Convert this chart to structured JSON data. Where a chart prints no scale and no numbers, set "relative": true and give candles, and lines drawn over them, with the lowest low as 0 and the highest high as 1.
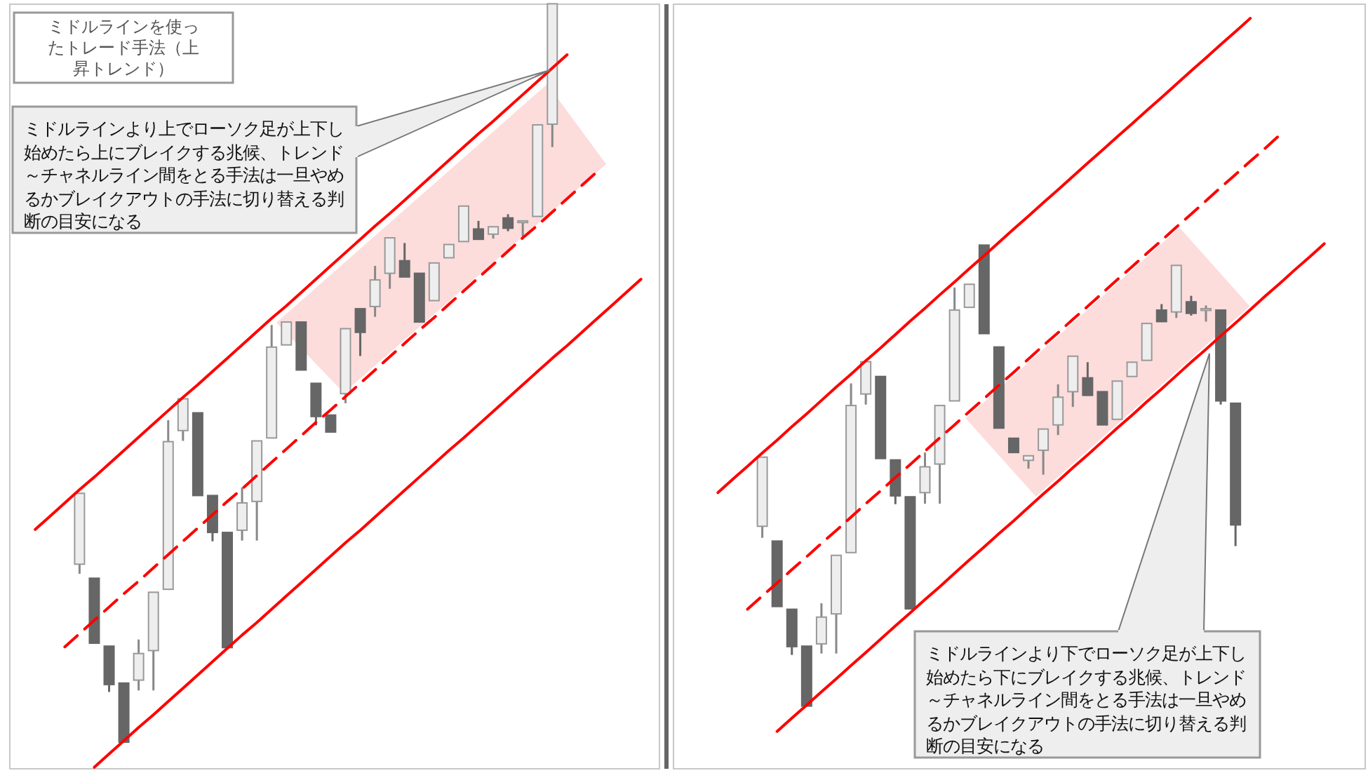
{
  "chart_data": [
    {
      "type": "candlestick",
      "title": "ミドルラインを使ったトレード手法（上昇トレンド）",
      "relative": true,
      "categories": [
        null,
        null,
        null,
        null,
        null,
        null,
        null,
        null,
        null,
        null,
        null,
        null,
        null,
        null,
        null,
        null,
        null,
        null,
        null,
        null,
        null,
        null,
        null,
        null,
        null,
        null,
        null,
        null,
        null,
        null,
        null,
        null,
        null,
        null,
        null,
        null,
        null,
        null,
        null,
        null,
        null,
        null,
        null
      ],
      "ohlc": [
        null,
        null,
        null,
        null,
        [
          0.241,
          0.337,
          0.228,
          0.337
        ],
        [
          0.222,
          0.222,
          0.134,
          0.134
        ],
        [
          0.13,
          0.13,
          0.068,
          0.078
        ],
        [
          0.08,
          0.08,
          0,
          0
        ],
        [
          0.084,
          0.139,
          0.07,
          0.12
        ],
        [
          0.124,
          0.203,
          0.07,
          0.203
        ],
        [
          0.207,
          0.436,
          0.207,
          0.407
        ],
        [
          0.422,
          0.465,
          0.408,
          0.465
        ],
        [
          0.446,
          0.446,
          0.334,
          0.334
        ],
        [
          0.334,
          0.334,
          0.272,
          0.284
        ],
        [
          0.284,
          0.284,
          0.128,
          0.128
        ],
        [
          0.287,
          0.345,
          0.273,
          0.324
        ],
        [
          0.326,
          0.408,
          0.273,
          0.408
        ],
        [
          0.412,
          0.565,
          0.412,
          0.535
        ],
        [
          0.538,
          0.569,
          0.538,
          0.569
        ],
        [
          0.569,
          0.569,
          0.504,
          0.504
        ],
        [
          0.486,
          0.486,
          0.429,
          0.441
        ],
        [
          0.443,
          0.443,
          0.42,
          0.42
        ],
        [
          0.472,
          0.56,
          0.459,
          0.56
        ],
        [
          0.587,
          0.587,
          0.523,
          0.555
        ],
        [
          0.59,
          0.645,
          0.576,
          0.626
        ],
        [
          0.635,
          0.683,
          0.614,
          0.683
        ],
        [
          0.652,
          0.676,
          0.63,
          0.63
        ],
        [
          0.635,
          0.635,
          0.569,
          0.569
        ],
        [
          0.598,
          0.649,
          0.598,
          0.649
        ],
        [
          0.656,
          0.674,
          0.656,
          0.674
        ],
        [
          0.678,
          0.726,
          0.678,
          0.726
        ],
        [
          0.695,
          0.706,
          0.681,
          0.681
        ],
        [
          0.688,
          0.698,
          0.682,
          0.698
        ],
        [
          0.71,
          0.715,
          0.692,
          0.696
        ],
        [
          0.706,
          0.706,
          0.685,
          0.706
        ],
        [
          0.712,
          0.836,
          0.712,
          0.836
        ],
        [
          0.837,
          1,
          0.806,
          1
        ],
        null,
        null,
        null,
        null,
        null,
        null
      ],
      "series": [
        {
          "type": "line",
          "color": "#ff0000",
          "line_style": "solid",
          "values": [
            null,
            0.288,
            0.306,
            0.324,
            0.342,
            0.359,
            0.377,
            0.395,
            0.413,
            0.431,
            0.449,
            0.467,
            0.484,
            0.502,
            0.52,
            0.538,
            0.556,
            0.574,
            0.591,
            0.609,
            0.627,
            0.645,
            0.663,
            0.681,
            0.699,
            0.716,
            0.734,
            0.752,
            0.77,
            0.788,
            0.806,
            0.824,
            0.841,
            0.859,
            0.877,
            0.895,
            0.913,
            0.931,
            null,
            null,
            null,
            null,
            null
          ]
        },
        {
          "type": "line",
          "color": "#ff0000",
          "line_style": "dashed",
          "values": [
            null,
            null,
            null,
            0.129,
            0.147,
            0.165,
            0.183,
            0.201,
            0.218,
            0.236,
            0.254,
            0.272,
            0.29,
            0.308,
            0.326,
            0.343,
            0.361,
            0.379,
            0.397,
            0.415,
            0.433,
            0.45,
            0.468,
            0.486,
            0.504,
            0.522,
            0.54,
            0.558,
            0.575,
            0.593,
            0.611,
            0.629,
            0.647,
            0.665,
            0.683,
            0.7,
            0.718,
            0.736,
            0.754,
            0.772,
            null,
            null,
            null
          ]
        },
        {
          "type": "line",
          "color": "#ff0000",
          "line_style": "solid",
          "values": [
            null,
            null,
            null,
            null,
            null,
            -0.034,
            -0.016,
            0.002,
            0.02,
            0.037,
            0.055,
            0.073,
            0.091,
            0.109,
            0.127,
            0.145,
            0.162,
            0.18,
            0.198,
            0.216,
            0.234,
            0.252,
            0.27,
            0.287,
            0.305,
            0.323,
            0.341,
            0.359,
            0.377,
            0.395,
            0.412,
            0.43,
            0.448,
            0.466,
            0.484,
            0.502,
            0.52,
            0.537,
            0.555,
            0.573,
            0.591,
            0.609,
            0.627
          ]
        }
      ],
      "annotations": [
        "ミドルラインより上でローソク足が上下し始めたら上にブレイクする兆候、トレンド～チャネルライン間をとる手法は一旦やめるかブレイクアウトの手法に切り替える判断の目安になる"
      ]
    },
    {
      "type": "candlestick",
      "relative": true,
      "categories": [
        null,
        null,
        null,
        null,
        null,
        null,
        null,
        null,
        null,
        null,
        null,
        null,
        null,
        null,
        null,
        null,
        null,
        null,
        null,
        null,
        null,
        null,
        null,
        null,
        null,
        null,
        null,
        null,
        null,
        null,
        null,
        null,
        null,
        null,
        null,
        null,
        null,
        null,
        null,
        null,
        null,
        null,
        null
      ],
      "ohlc": [
        null,
        null,
        null,
        null,
        [
          0.39,
          0.54,
          0.365,
          0.54
        ],
        [
          0.358,
          0.358,
          0.216,
          0.216
        ],
        [
          0.21,
          0.21,
          0.111,
          0.129
        ],
        [
          0.13,
          0.13,
          0,
          0
        ],
        [
          0.135,
          0.223,
          0.114,
          0.193
        ],
        [
          0.2,
          0.327,
          0.114,
          0.327
        ],
        [
          0.333,
          0.7,
          0.333,
          0.652
        ],
        [
          0.677,
          0.747,
          0.654,
          0.747
        ],
        [
          0.715,
          0.715,
          0.537,
          0.537
        ],
        [
          0.534,
          0.534,
          0.438,
          0.456
        ],
        [
          0.454,
          0.454,
          0.211,
          0.211
        ],
        [
          0.463,
          0.55,
          0.439,
          0.519
        ],
        [
          0.525,
          0.652,
          0.439,
          0.652
        ],
        [
          0.662,
          0.908,
          0.662,
          0.859
        ],
        [
          0.865,
          0.915,
          0.865,
          0.915
        ],
        [
          1,
          1,
          0.808,
          0.808
        ],
        [
          0.779,
          0.779,
          0.603,
          0.603
        ],
        [
          0.581,
          0.581,
          0.55,
          0.55
        ],
        [
          0.533,
          0.543,
          0.515,
          0.543
        ],
        [
          0.555,
          0.601,
          0.502,
          0.601
        ],
        [
          0.61,
          0.698,
          0.588,
          0.67
        ],
        [
          0.682,
          0.759,
          0.649,
          0.759
        ],
        [
          0.712,
          0.746,
          0.674,
          0.674
        ],
        [
          0.682,
          0.682,
          0.61,
          0.61
        ],
        [
          0.622,
          0.705,
          0.622,
          0.705
        ],
        [
          0.715,
          0.746,
          0.715,
          0.746
        ],
        [
          0.75,
          0.83,
          0.75,
          0.83
        ],
        [
          0.859,
          0.872,
          0.834,
          0.834
        ],
        [
          0.855,
          0.956,
          0.842,
          0.956
        ],
        [
          0.877,
          0.89,
          0.847,
          0.852
        ],
        [
          0.862,
          0.869,
          0.834,
          0.862
        ],
        [
          0.859,
          0.859,
          0.654,
          0.662
        ],
        [
          0.657,
          0.657,
          0.347,
          0.393
        ],
        null,
        null,
        null,
        null,
        null,
        null
      ],
      "series": [
        {
          "type": "line",
          "color": "#ff0000",
          "line_style": "solid",
          "values": [
            null,
            0.463,
            0.492,
            0.52,
            0.549,
            0.577,
            0.606,
            0.634,
            0.663,
            0.692,
            0.72,
            0.749,
            0.777,
            0.806,
            0.835,
            0.863,
            0.892,
            0.92,
            0.949,
            0.977,
            1.006,
            1.035,
            1.063,
            1.092,
            1.12,
            1.149,
            1.178,
            1.206,
            1.235,
            1.263,
            1.292,
            1.32,
            1.349,
            1.378,
            1.406,
            1.435,
            1.463,
            1.492,
            null,
            null,
            null,
            null,
            null
          ]
        },
        {
          "type": "line",
          "color": "#ff0000",
          "line_style": "dashed",
          "values": [
            null,
            null,
            null,
            0.21,
            0.239,
            0.267,
            0.296,
            0.324,
            0.353,
            0.381,
            0.41,
            0.439,
            0.467,
            0.496,
            0.524,
            0.553,
            0.582,
            0.61,
            0.639,
            0.667,
            0.696,
            0.724,
            0.753,
            0.782,
            0.81,
            0.839,
            0.867,
            0.896,
            0.925,
            0.953,
            0.982,
            1.01,
            1.039,
            1.067,
            1.096,
            1.125,
            1.153,
            1.182,
            1.21,
            1.239,
            null,
            null,
            null
          ]
        },
        {
          "type": "line",
          "color": "#ff0000",
          "line_style": "solid",
          "values": [
            null,
            null,
            null,
            null,
            null,
            -0.055,
            -0.026,
            0.002,
            0.031,
            0.059,
            0.088,
            0.116,
            0.145,
            0.174,
            0.202,
            0.231,
            0.259,
            0.288,
            0.317,
            0.345,
            0.374,
            0.402,
            0.431,
            0.46,
            0.488,
            0.517,
            0.545,
            0.574,
            0.603,
            0.631,
            0.66,
            0.688,
            0.717,
            0.746,
            0.774,
            0.803,
            0.831,
            0.86,
            0.889,
            0.917,
            0.946,
            0.974,
            1.003
          ]
        }
      ],
      "annotations": [
        "ミドルラインより下でローソク足が上下し始めたら下にブレイクする兆候、トレンド～チャネルライン間をとる手法は一旦やめるかブレイクアウトの手法に切り替える判断の目安になる"
      ]
    }
  ]
}
